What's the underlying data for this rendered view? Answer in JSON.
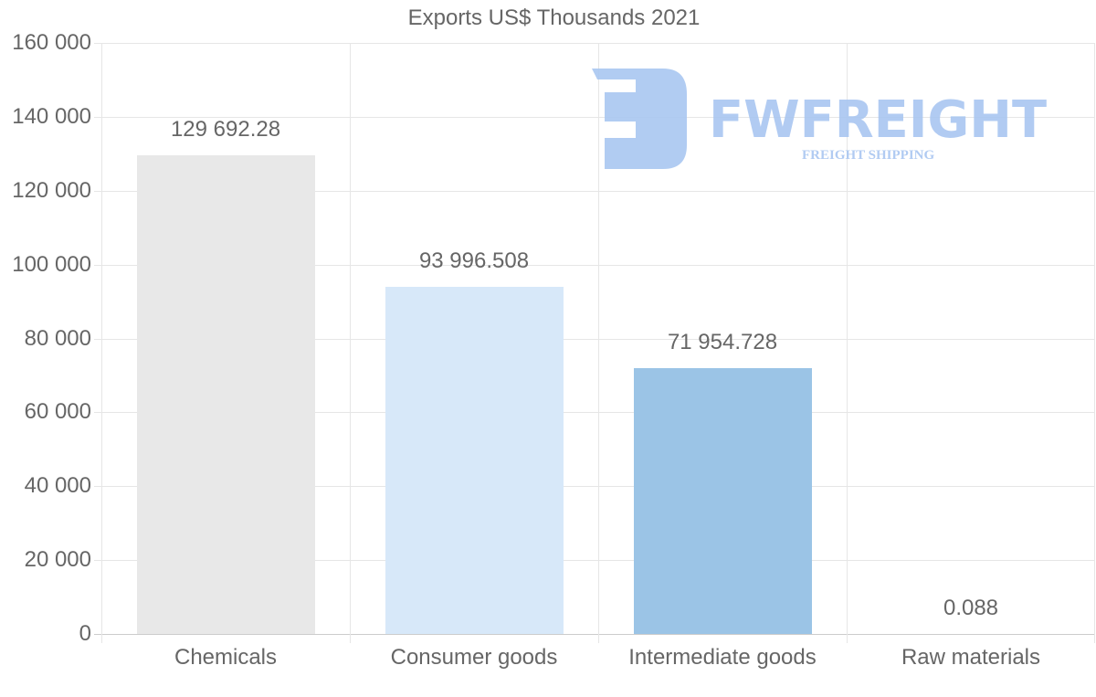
{
  "chart_data": {
    "type": "bar",
    "title": "Exports US$ Thousands 2021",
    "xlabel": "",
    "ylabel": "",
    "categories": [
      "Chemicals",
      "Consumer goods",
      "Intermediate goods",
      "Raw materials"
    ],
    "values": [
      129692.28,
      93996.508,
      71954.728,
      0.088
    ],
    "value_labels": [
      "129 692.28",
      "93 996.508",
      "71 954.728",
      "0.088"
    ],
    "colors": [
      "#e8e8e8",
      "#d7e8f9",
      "#9bc4e6",
      "#cfe2f3"
    ],
    "ylim": [
      0,
      160000
    ],
    "yticks": [
      0,
      20000,
      40000,
      60000,
      80000,
      100000,
      120000,
      140000,
      160000
    ],
    "ytick_labels": [
      "0",
      "20 000",
      "40 000",
      "60 000",
      "80 000",
      "100 000",
      "120 000",
      "140 000",
      "160 000"
    ],
    "grid": true,
    "legend": null
  },
  "watermark": {
    "brand": "FWFREIGHT",
    "tagline": "FREIGHT SHIPPING",
    "color": "#a9c6f1"
  }
}
